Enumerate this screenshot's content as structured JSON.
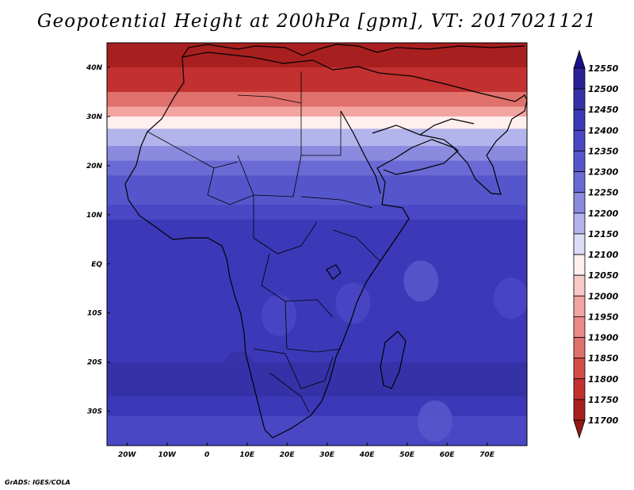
{
  "title": "Geopotential Height at 200hPa [gpm], VT: 2017021121",
  "footer": "GrADS: IGES/COLA",
  "map": {
    "lon_range": [
      -25,
      80
    ],
    "lat_range": [
      -37,
      45
    ],
    "lat_labels": [
      {
        "lat": 40,
        "text": "40N"
      },
      {
        "lat": 30,
        "text": "30N"
      },
      {
        "lat": 20,
        "text": "20N"
      },
      {
        "lat": 10,
        "text": "10N"
      },
      {
        "lat": 0,
        "text": "EQ"
      },
      {
        "lat": -10,
        "text": "10S"
      },
      {
        "lat": -20,
        "text": "20S"
      },
      {
        "lat": -30,
        "text": "30S"
      }
    ],
    "lon_labels": [
      {
        "lon": -20,
        "text": "20W"
      },
      {
        "lon": -10,
        "text": "10W"
      },
      {
        "lon": 0,
        "text": "0"
      },
      {
        "lon": 10,
        "text": "10E"
      },
      {
        "lon": 20,
        "text": "20E"
      },
      {
        "lon": 30,
        "text": "30E"
      },
      {
        "lon": 40,
        "text": "40E"
      },
      {
        "lon": 50,
        "text": "50E"
      },
      {
        "lon": 60,
        "text": "60E"
      },
      {
        "lon": 70,
        "text": "70E"
      }
    ],
    "bands": [
      {
        "lat": 45,
        "level": 11700
      },
      {
        "lat": 40,
        "level": 11750
      },
      {
        "lat": 35,
        "level": 11850
      },
      {
        "lat": 32,
        "level": 11950
      },
      {
        "lat": 30,
        "level": 12050
      },
      {
        "lat": 27.5,
        "level": 12150
      },
      {
        "lat": 24,
        "level": 12200
      },
      {
        "lat": 21,
        "level": 12250
      },
      {
        "lat": 18,
        "level": 12300
      },
      {
        "lat": 12,
        "level": 12350
      },
      {
        "lat": 9,
        "level": 12400
      },
      {
        "lat": -15,
        "level": 12400
      },
      {
        "lat": -20,
        "level": 12450
      },
      {
        "lat": -27,
        "level": 12400
      },
      {
        "lat": -31,
        "level": 12350
      },
      {
        "lat": -37,
        "level": 12300
      }
    ],
    "patches": [
      {
        "lon": 53.5,
        "lat": -3.5,
        "level": 12300
      },
      {
        "lon": 76,
        "lat": -7,
        "level": 12350
      },
      {
        "lon": 57,
        "lat": -32,
        "level": 12300
      },
      {
        "lon": 18,
        "lat": -10.5,
        "level": 12350
      },
      {
        "lon": 36.5,
        "lat": -8,
        "level": 12350
      },
      {
        "lon": 8,
        "lat": -22,
        "level": 12450
      }
    ]
  },
  "colorbar": {
    "levels": [
      12550,
      12500,
      12450,
      12400,
      12350,
      12300,
      12250,
      12200,
      12150,
      12100,
      12050,
      12000,
      11950,
      11900,
      11850,
      11800,
      11750,
      11700
    ],
    "colors": [
      "#19108a",
      "#2a2298",
      "#3532a8",
      "#3b39b8",
      "#4947c4",
      "#5656cc",
      "#6a6ad4",
      "#8a8adf",
      "#b4b4ec",
      "#dcdcf7",
      "#fff0ef",
      "#f8c9c6",
      "#f2a4a0",
      "#ec8a86",
      "#e0706c",
      "#d44c48",
      "#c23030",
      "#a81f1f",
      "#941818"
    ]
  },
  "colors": {
    "frame": "#000000",
    "coast": "#000000"
  }
}
